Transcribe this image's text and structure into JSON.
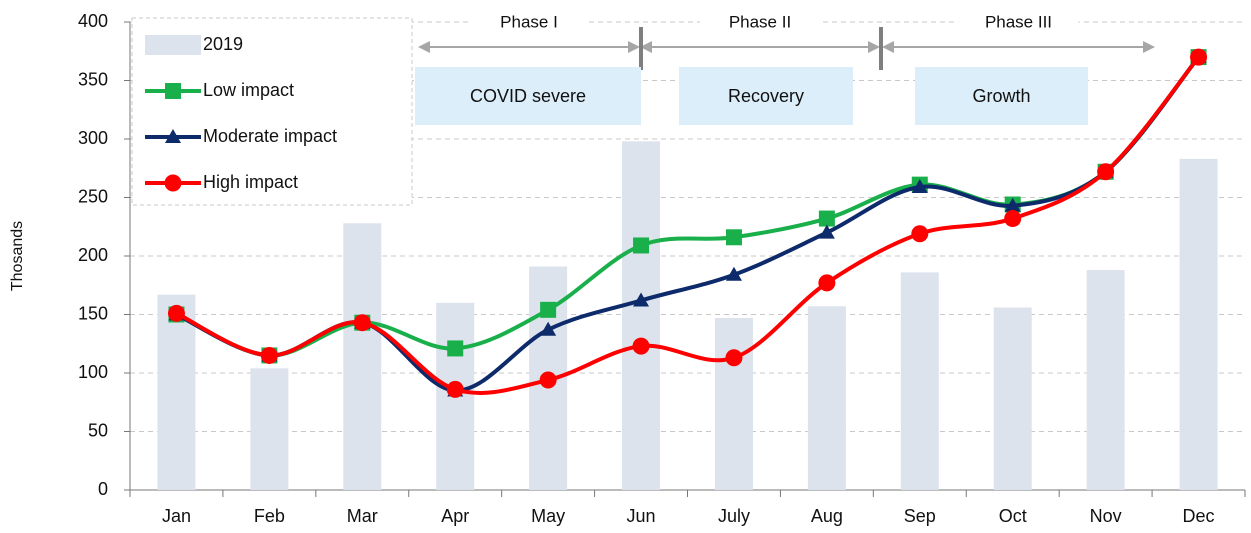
{
  "chart_data": {
    "type": "line",
    "y_label": "Thosands",
    "categories": [
      "Jan",
      "Feb",
      "Mar",
      "Apr",
      "May",
      "Jun",
      "July",
      "Aug",
      "Sep",
      "Oct",
      "Nov",
      "Dec"
    ],
    "series": [
      {
        "name": "2019",
        "type": "bar",
        "color": "#dde3ec",
        "values": [
          167,
          104,
          228,
          160,
          191,
          298,
          147,
          157,
          186,
          156,
          188,
          283
        ]
      },
      {
        "name": "Low impact",
        "type": "line",
        "marker": "square",
        "color": "#19b04b",
        "values": [
          150,
          115,
          143,
          121,
          154,
          209,
          216,
          232,
          261,
          244,
          272,
          370
        ]
      },
      {
        "name": "Moderate impact",
        "type": "line",
        "marker": "triangle",
        "color": "#0d2a6b",
        "values": [
          150,
          115,
          143,
          85,
          137,
          162,
          184,
          220,
          259,
          243,
          272,
          370
        ]
      },
      {
        "name": "High impact",
        "type": "line",
        "marker": "circle",
        "color": "#ff0000",
        "values": [
          151,
          115,
          143,
          86,
          94,
          123,
          113,
          177,
          219,
          232,
          272,
          370
        ]
      }
    ],
    "ylim": [
      0,
      400
    ],
    "yticks": [
      0,
      50,
      100,
      150,
      200,
      250,
      300,
      350,
      400
    ],
    "grid": true,
    "legend": "upper left",
    "phases": [
      "Phase I",
      "Phase II",
      "Phase III"
    ],
    "phase_boxes": [
      "COVID severe",
      "Recovery",
      "Growth"
    ]
  }
}
